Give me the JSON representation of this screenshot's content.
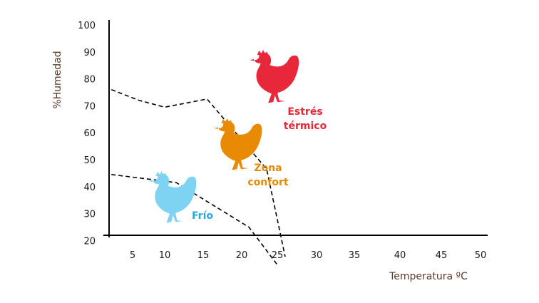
{
  "chart_data": {
    "type": "line",
    "xlabel": "Temperatura ºC",
    "ylabel": "%Humedad",
    "xlim": [
      0,
      50
    ],
    "ylim": [
      11,
      100
    ],
    "x_ticks": [
      "5",
      "10",
      "15",
      "20",
      "25",
      "30",
      "35",
      "40",
      "45",
      "50"
    ],
    "y_ticks": [
      "100",
      "90",
      "80",
      "70",
      "60",
      "50",
      "40",
      "30",
      "20"
    ],
    "grid": false,
    "series": [
      {
        "points": [
          [
            0.5,
            44.5
          ],
          [
            11.5,
            41.5
          ],
          [
            21,
            25
          ],
          [
            25,
            11
          ]
        ]
      },
      {
        "points": [
          [
            0.5,
            76
          ],
          [
            6,
            72
          ],
          [
            10,
            69.5
          ],
          [
            15.5,
            72.5
          ],
          [
            23.5,
            46.5
          ],
          [
            26,
            14
          ]
        ]
      }
    ],
    "zones": [
      {
        "label": "Frío",
        "color": "#2aa8dd",
        "icon": "chicken-icon",
        "icon_color": "#7fd3f2"
      },
      {
        "label": "Zona\nconfort",
        "color": "#e68a00",
        "icon": "chicken-icon",
        "icon_color": "#e98a05"
      },
      {
        "label": "Estrés\ntérmico",
        "color": "#e8273a",
        "icon": "chicken-icon",
        "icon_color": "#e8273a"
      }
    ]
  }
}
